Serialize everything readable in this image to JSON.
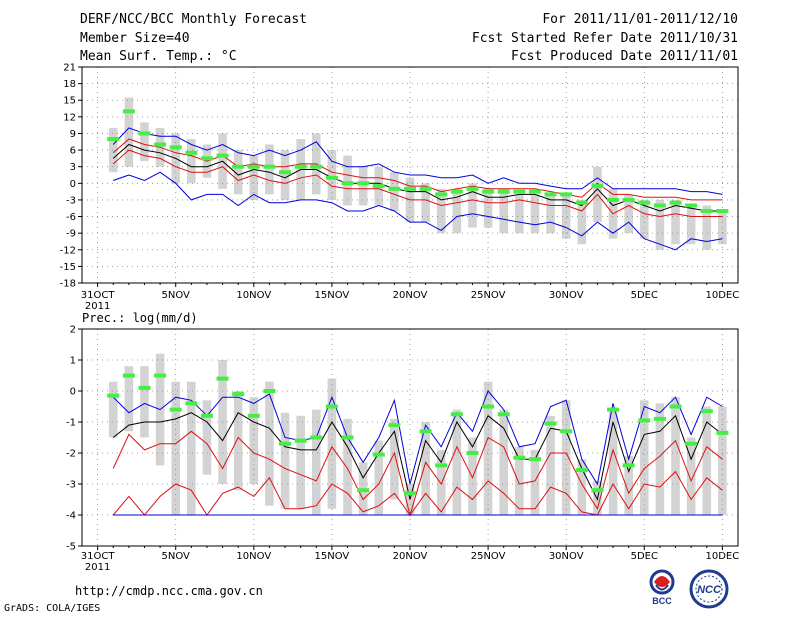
{
  "header": {
    "title": "DERF/NCC/BCC Monthly Forecast",
    "member_size": "Member Size=40",
    "variable": "Mean Surf. Temp.: °C",
    "forecast_period": "For 2011/11/01-2011/12/10",
    "started_date": "Fcst Started Refer Date 2011/10/31",
    "produced_date": "Fcst Produced Date 2011/11/01"
  },
  "footer": {
    "url": "http://cmdp.ncc.cma.gov.cn",
    "credit": "GrADS: COLA/IGES",
    "logo_bcc": "BCC",
    "logo_ncc": "NCC"
  },
  "colors": {
    "box": "#d3d3d3",
    "obs": "#44ee44",
    "ensemble_mean": "#000000",
    "inner_band": "#dd1111",
    "outer_band": "#0000dd",
    "grid": "#888888"
  },
  "chart_data": [
    {
      "type": "line",
      "title": "Mean Surf. Temp.: °C",
      "xlabel": "",
      "ylabel": "°C",
      "x_tick_labels": [
        "31OCT",
        "5NOV",
        "10NOV",
        "15NOV",
        "20NOV",
        "25NOV",
        "30NOV",
        "5DEC",
        "10DEC"
      ],
      "x_tick_days": [
        0,
        5,
        10,
        15,
        20,
        25,
        30,
        35,
        40
      ],
      "x_year_label": "2011",
      "xlim": [
        -1,
        41
      ],
      "ylim": [
        -18,
        21
      ],
      "y_ticks": [
        21,
        18,
        15,
        12,
        9,
        6,
        3,
        0,
        -3,
        -6,
        -9,
        -12,
        -15,
        -18
      ],
      "grid": true,
      "days": [
        1,
        2,
        3,
        4,
        5,
        6,
        7,
        8,
        9,
        10,
        11,
        12,
        13,
        14,
        15,
        16,
        17,
        18,
        19,
        20,
        21,
        22,
        23,
        24,
        25,
        26,
        27,
        28,
        29,
        30,
        31,
        32,
        33,
        34,
        35,
        36,
        37,
        38,
        39,
        40
      ],
      "box_high": [
        10,
        15.5,
        11,
        10,
        9,
        8,
        7,
        9,
        6,
        5,
        7,
        6,
        8,
        9,
        6,
        5,
        3,
        3,
        2,
        1,
        0,
        -1,
        -1,
        0,
        -1,
        -1,
        -2,
        -2,
        -2,
        -2,
        -3,
        3,
        -1,
        -2,
        -3,
        -3,
        -3,
        -4,
        -4,
        -5
      ],
      "box_low": [
        2,
        3,
        4,
        3,
        0,
        0,
        1,
        -1,
        -2,
        -3,
        -2,
        -3,
        -3,
        -2,
        -3,
        -4,
        -4,
        -4,
        -5,
        -7,
        -7,
        -9,
        -9,
        -8,
        -8,
        -9,
        -9,
        -9,
        -9,
        -10,
        -11,
        -7,
        -10,
        -9,
        -10,
        -12,
        -11,
        -11,
        -12,
        -11
      ],
      "series": [
        {
          "name": "ensemble max",
          "values": [
            7,
            10,
            9,
            8.5,
            8.5,
            7,
            6,
            7,
            5.5,
            5,
            6,
            5,
            6,
            7.5,
            4,
            3,
            3,
            3.5,
            2,
            1.5,
            1.5,
            1,
            1,
            1.5,
            0,
            1,
            0,
            0,
            -0.5,
            -1,
            -1,
            1,
            -1,
            -1,
            -1,
            -1,
            -1,
            -1.5,
            -1.5,
            -2
          ]
        },
        {
          "name": "upper band",
          "values": [
            5.5,
            8,
            7,
            6.5,
            5.5,
            5,
            4,
            5,
            3,
            3.5,
            3,
            3,
            3.5,
            3.5,
            2,
            1.5,
            1,
            1,
            0.5,
            -0.5,
            -0.5,
            -1.5,
            -1,
            -0.5,
            -1,
            -1,
            -1,
            -1,
            -1.5,
            -2,
            -2.5,
            0,
            -2,
            -2,
            -2.5,
            -2.5,
            -2.5,
            -3,
            -3,
            -3
          ]
        },
        {
          "name": "ensemble mean",
          "values": [
            4.5,
            7,
            6,
            5.5,
            4.5,
            3,
            3,
            4,
            1.5,
            2.5,
            2,
            1,
            2.5,
            2.5,
            1,
            0,
            0,
            0,
            -1,
            -1.5,
            -1.5,
            -3,
            -2.5,
            -1.5,
            -2.5,
            -2.5,
            -2,
            -2,
            -3,
            -3,
            -4,
            -1,
            -4,
            -3,
            -4,
            -5,
            -4,
            -4.5,
            -5,
            -5
          ]
        },
        {
          "name": "lower band",
          "values": [
            3.5,
            6,
            5,
            4.5,
            3,
            2,
            2,
            3,
            0.5,
            1.5,
            0.5,
            0,
            1,
            1.5,
            -0.5,
            -1,
            -1,
            -1,
            -2,
            -3,
            -3,
            -4,
            -3.5,
            -3,
            -3.5,
            -3.5,
            -3,
            -3.5,
            -4,
            -4,
            -5,
            -2,
            -5.5,
            -4,
            -5.5,
            -6,
            -5.5,
            -6,
            -6,
            -6
          ]
        },
        {
          "name": "ensemble min",
          "values": [
            0.5,
            1.5,
            0.5,
            2,
            0,
            -3,
            -2,
            -2,
            -4,
            -2,
            -3.5,
            -3.5,
            -3,
            -3,
            -3.5,
            -5,
            -5,
            -4,
            -5,
            -7,
            -7,
            -8.5,
            -6,
            -5.5,
            -6,
            -6.5,
            -7,
            -7.5,
            -7,
            -8,
            -9.5,
            -7,
            -9,
            -7,
            -10,
            -11,
            -12,
            -10,
            -10.5,
            -10
          ]
        }
      ],
      "observed": [
        8,
        13,
        9,
        7,
        6.5,
        5.5,
        4.5,
        5,
        3,
        3,
        3,
        2,
        3,
        3,
        1,
        0,
        0,
        -0.5,
        -1,
        -1,
        -1,
        -2,
        -1.5,
        -1,
        -1.5,
        -1.5,
        -1.5,
        -1.5,
        -2,
        -2,
        -3.5,
        -0.5,
        -3,
        -3,
        -3.5,
        -4,
        -3.5,
        -4,
        -5,
        -5
      ]
    },
    {
      "type": "line",
      "title": "Prec.: log(mm/d)",
      "xlabel": "",
      "ylabel": "log(mm/d)",
      "x_tick_labels": [
        "31OCT",
        "5NOV",
        "10NOV",
        "15NOV",
        "20NOV",
        "25NOV",
        "30NOV",
        "5DEC",
        "10DEC"
      ],
      "x_tick_days": [
        0,
        5,
        10,
        15,
        20,
        25,
        30,
        35,
        40
      ],
      "x_year_label": "2011",
      "xlim": [
        -1,
        41
      ],
      "ylim": [
        -5,
        2
      ],
      "y_ticks": [
        2,
        1,
        0,
        -1,
        -2,
        -3,
        -4,
        -5
      ],
      "grid": true,
      "days": [
        1,
        2,
        3,
        4,
        5,
        6,
        7,
        8,
        9,
        10,
        11,
        12,
        13,
        14,
        15,
        16,
        17,
        18,
        19,
        20,
        21,
        22,
        23,
        24,
        25,
        26,
        27,
        28,
        29,
        30,
        31,
        32,
        33,
        34,
        35,
        36,
        37,
        38,
        39,
        40
      ],
      "box_high": [
        0.3,
        0.8,
        0.8,
        1.2,
        0.3,
        0.3,
        -0.3,
        1,
        0,
        -0.2,
        0.3,
        -0.7,
        -0.8,
        -0.6,
        0.4,
        -0.9,
        -2.3,
        -1.6,
        -0.9,
        -3,
        -1,
        -1.9,
        -0.6,
        -1.5,
        0.3,
        -0.6,
        -1.8,
        -1.9,
        -0.8,
        -0.3,
        -2.2,
        -2.9,
        -0.6,
        -2.1,
        -0.3,
        -0.4,
        -0.2,
        -1.5,
        -0.5,
        -0.5
      ],
      "box_low": [
        -1.5,
        -1.3,
        -1.5,
        -2.4,
        -4,
        -4,
        -2.7,
        -3,
        -3.2,
        -3,
        -3.7,
        -3.8,
        -3.8,
        -4,
        -3.8,
        -4,
        -4,
        -4,
        -3.5,
        -4,
        -4,
        -4,
        -4,
        -4,
        -4,
        -4,
        -4,
        -4,
        -4,
        -4,
        -4,
        -4,
        -4,
        -4,
        -4,
        -4,
        -4,
        -4,
        -4,
        -4
      ],
      "series": [
        {
          "name": "ensemble max",
          "values": [
            -0.2,
            -0.7,
            -0.4,
            -0.6,
            -0.2,
            -0.3,
            -0.8,
            -0.2,
            -0.2,
            -0.4,
            -0.1,
            -1.5,
            -1.6,
            -1.5,
            -0.2,
            -1.5,
            -2.3,
            -1.5,
            -0.3,
            -3,
            -1.1,
            -1.8,
            -0.7,
            -1.3,
            0,
            -0.6,
            -1.8,
            -1.7,
            -0.5,
            -0.3,
            -2.2,
            -3,
            -0.4,
            -2.2,
            -0.5,
            -0.7,
            -0.2,
            -1.4,
            -0.2,
            -0.5
          ]
        },
        {
          "name": "ensemble mean",
          "values": [
            -1.5,
            -1.1,
            -1,
            -1,
            -0.9,
            -0.7,
            -1,
            -1.6,
            -0.7,
            -1,
            -1.2,
            -1.8,
            -1.9,
            -1.9,
            -1,
            -1.8,
            -2.8,
            -2,
            -1.3,
            -3.5,
            -1.6,
            -2.3,
            -1,
            -1.8,
            -0.8,
            -1.2,
            -2.2,
            -2.2,
            -1.2,
            -1.3,
            -2.5,
            -3.5,
            -1,
            -2.6,
            -1.4,
            -1.3,
            -0.8,
            -2.2,
            -1,
            -1.4
          ]
        },
        {
          "name": "upper band",
          "values": [
            -2.5,
            -1.4,
            -1.9,
            -1.7,
            -1.7,
            -1.3,
            -1.7,
            -2.5,
            -1.5,
            -2,
            -2.2,
            -2.5,
            -2.7,
            -2.9,
            -1.8,
            -2.5,
            -3.5,
            -3,
            -2,
            -4,
            -2.3,
            -3,
            -1.8,
            -2.8,
            -1.5,
            -1.8,
            -3,
            -2.9,
            -2,
            -2,
            -3,
            -3.8,
            -1.9,
            -3.3,
            -2.5,
            -2.1,
            -1.6,
            -2.9,
            -1.8,
            -2.2
          ]
        },
        {
          "name": "lower band",
          "values": [
            -4,
            -3.4,
            -4,
            -3.4,
            -3,
            -3.2,
            -4,
            -3.3,
            -3.1,
            -3.4,
            -2.8,
            -3.8,
            -3.8,
            -3.7,
            -3,
            -3.3,
            -3.9,
            -3.7,
            -3.3,
            -4,
            -3.3,
            -3.9,
            -3.1,
            -3.5,
            -2.9,
            -3.3,
            -3.8,
            -3.8,
            -3.1,
            -3.3,
            -3.9,
            -4,
            -3,
            -3.8,
            -3,
            -3.1,
            -2.6,
            -3.5,
            -2.8,
            -3.2
          ]
        },
        {
          "name": "ensemble min",
          "values": [
            -4,
            -4,
            -4,
            -4,
            -4,
            -4,
            -4,
            -4,
            -4,
            -4,
            -4,
            -4,
            -4,
            -4,
            -4,
            -4,
            -4,
            -4,
            -4,
            -4,
            -4,
            -4,
            -4,
            -4,
            -4,
            -4,
            -4,
            -4,
            -4,
            -4,
            -4,
            -4,
            -4,
            -4,
            -4,
            -4,
            -4,
            -4,
            -4,
            -4
          ]
        }
      ],
      "observed": [
        -0.15,
        0.5,
        0.1,
        0.5,
        -0.6,
        -0.4,
        -0.8,
        0.4,
        -0.1,
        -0.8,
        0,
        -1.7,
        -1.6,
        -1.5,
        -0.5,
        -1.5,
        -3.2,
        -2.05,
        -1.1,
        -3.3,
        -1.3,
        -2.4,
        -0.75,
        -2,
        -0.5,
        -0.75,
        -2.15,
        -2.2,
        -1.05,
        -1.3,
        -2.55,
        -3.2,
        -0.6,
        -2.4,
        -0.95,
        -0.9,
        -0.5,
        -1.7,
        -0.65,
        -1.35
      ]
    }
  ]
}
